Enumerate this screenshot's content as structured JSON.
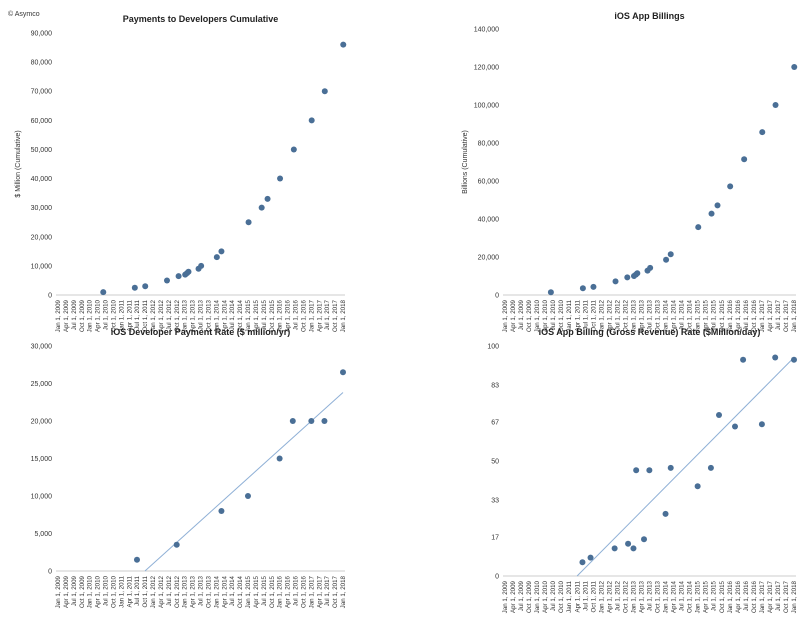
{
  "copyright": "© Asymco",
  "x_ticks": [
    "Jan 1, 2009",
    "Apr 1, 2009",
    "Jul 1, 2009",
    "Oct 1, 2009",
    "Jan 1, 2010",
    "Apr 1, 2010",
    "Jul 1, 2010",
    "Oct 1, 2010",
    "Jan 1, 2011",
    "Apr 1, 2011",
    "Jul 1, 2011",
    "Oct 1, 2011",
    "Jan 1, 2012",
    "Apr 1, 2012",
    "Jul 1, 2012",
    "Oct 1, 2012",
    "Jan 1, 2013",
    "Apr 1, 2013",
    "Jul 1, 2013",
    "Oct 1, 2013",
    "Jan 1, 2014",
    "Apr 1, 2014",
    "Jul 1, 2014",
    "Oct 1, 2014",
    "Jan 1, 2015",
    "Apr 1, 2015",
    "Jul 1, 2015",
    "Oct 1, 2015",
    "Jan 1, 2016",
    "Apr 1, 2016",
    "Jul 1, 2016",
    "Oct 1, 2016",
    "Jan 1, 2017",
    "Apr 1, 2017",
    "Jul 1, 2017",
    "Oct 1, 2017",
    "Jan 1, 2018"
  ],
  "point_color": "#4a6f96",
  "trend_color": "#8fb0d6",
  "chart_data": [
    {
      "type": "scatter",
      "title": "Payments to Developers Cumulative",
      "ylabel": "$ Million (Cumulative)",
      "ylim": [
        0,
        90000
      ],
      "yticks": [
        0,
        10000,
        20000,
        30000,
        40000,
        50000,
        60000,
        70000,
        80000,
        90000
      ],
      "ytick_labels": [
        "0",
        "10,000",
        "20,000",
        "30,000",
        "40,000",
        "50,000",
        "60,000",
        "70,000",
        "80,000",
        "90,000"
      ],
      "trendline": false,
      "points": [
        {
          "x": "2010-06-07",
          "y": 1000
        },
        {
          "x": "2011-06-06",
          "y": 2500
        },
        {
          "x": "2011-10-04",
          "y": 3000
        },
        {
          "x": "2012-06-11",
          "y": 5000
        },
        {
          "x": "2012-10-23",
          "y": 6500
        },
        {
          "x": "2013-01-07",
          "y": 7000
        },
        {
          "x": "2013-01-28",
          "y": 7500
        },
        {
          "x": "2013-02-14",
          "y": 8000
        },
        {
          "x": "2013-06-10",
          "y": 9000
        },
        {
          "x": "2013-07-10",
          "y": 10000
        },
        {
          "x": "2014-01-07",
          "y": 13000
        },
        {
          "x": "2014-03-01",
          "y": 15000
        },
        {
          "x": "2015-01-08",
          "y": 25000
        },
        {
          "x": "2015-06-08",
          "y": 30000
        },
        {
          "x": "2015-08-15",
          "y": 33000
        },
        {
          "x": "2016-01-06",
          "y": 40000
        },
        {
          "x": "2016-06-13",
          "y": 50000
        },
        {
          "x": "2017-01-05",
          "y": 60000
        },
        {
          "x": "2017-06-05",
          "y": 70000
        },
        {
          "x": "2018-01-04",
          "y": 86000
        }
      ]
    },
    {
      "type": "scatter",
      "title": "iOS App Billings",
      "ylabel": "Billions (Cumulative)",
      "ylim": [
        0,
        140000
      ],
      "yticks": [
        0,
        20000,
        40000,
        60000,
        80000,
        100000,
        120000,
        140000
      ],
      "ytick_labels": [
        "0",
        "20,000",
        "40,000",
        "60,000",
        "80,000",
        "100,000",
        "120,000",
        "140,000"
      ],
      "trendline": false,
      "points": [
        {
          "x": "2010-06-07",
          "y": 1429
        },
        {
          "x": "2011-06-06",
          "y": 3571
        },
        {
          "x": "2011-10-04",
          "y": 4286
        },
        {
          "x": "2012-06-11",
          "y": 7143
        },
        {
          "x": "2012-10-23",
          "y": 9286
        },
        {
          "x": "2013-01-07",
          "y": 10000
        },
        {
          "x": "2013-01-28",
          "y": 10714
        },
        {
          "x": "2013-02-14",
          "y": 11429
        },
        {
          "x": "2013-06-10",
          "y": 12857
        },
        {
          "x": "2013-07-10",
          "y": 14286
        },
        {
          "x": "2014-01-07",
          "y": 18571
        },
        {
          "x": "2014-03-01",
          "y": 21429
        },
        {
          "x": "2015-01-08",
          "y": 35714
        },
        {
          "x": "2015-06-08",
          "y": 42857
        },
        {
          "x": "2015-08-15",
          "y": 47143
        },
        {
          "x": "2016-01-06",
          "y": 57143
        },
        {
          "x": "2016-06-13",
          "y": 71429
        },
        {
          "x": "2017-01-05",
          "y": 85714
        },
        {
          "x": "2017-06-05",
          "y": 100000
        },
        {
          "x": "2018-01-04",
          "y": 120000
        }
      ]
    },
    {
      "type": "scatter",
      "title": "iOS Developer Payment Rate ($ million/yr)",
      "ylabel": "",
      "ylim": [
        0,
        30000
      ],
      "yticks": [
        0,
        5000,
        10000,
        15000,
        20000,
        25000,
        30000
      ],
      "ytick_labels": [
        "0",
        "5,000",
        "10,000",
        "15,000",
        "20,000",
        "25,000",
        "30,000"
      ],
      "trendline": true,
      "trend": [
        {
          "x": "2011-10-01",
          "y": 0
        },
        {
          "x": "2018-01-01",
          "y": 23800
        }
      ],
      "points": [
        {
          "x": "2011-07-01",
          "y": 1500
        },
        {
          "x": "2012-10-01",
          "y": 3500
        },
        {
          "x": "2014-03-01",
          "y": 8000
        },
        {
          "x": "2015-01-01",
          "y": 10000
        },
        {
          "x": "2016-01-01",
          "y": 15000
        },
        {
          "x": "2016-06-01",
          "y": 20000
        },
        {
          "x": "2017-01-01",
          "y": 20000
        },
        {
          "x": "2017-06-01",
          "y": 20000
        },
        {
          "x": "2018-01-01",
          "y": 26500
        }
      ]
    },
    {
      "type": "scatter",
      "title": "iOS App Billing (Gross Revenue) Rate ($Million/day)",
      "ylabel": "",
      "ylim": [
        0,
        100
      ],
      "yticks": [
        0,
        17,
        33,
        50,
        67,
        83,
        100
      ],
      "ytick_labels": [
        "0",
        "17",
        "33",
        "50",
        "67",
        "83",
        "100"
      ],
      "trendline": true,
      "trend": [
        {
          "x": "2011-04-01",
          "y": 0
        },
        {
          "x": "2018-01-01",
          "y": 95
        }
      ],
      "points": [
        {
          "x": "2011-06-01",
          "y": 6
        },
        {
          "x": "2011-09-01",
          "y": 8
        },
        {
          "x": "2012-06-01",
          "y": 12
        },
        {
          "x": "2012-11-01",
          "y": 14
        },
        {
          "x": "2013-01-01",
          "y": 12
        },
        {
          "x": "2013-02-01",
          "y": 46
        },
        {
          "x": "2013-05-01",
          "y": 16
        },
        {
          "x": "2013-07-01",
          "y": 46
        },
        {
          "x": "2014-01-01",
          "y": 27
        },
        {
          "x": "2014-03-01",
          "y": 47
        },
        {
          "x": "2015-01-01",
          "y": 39
        },
        {
          "x": "2015-06-01",
          "y": 47
        },
        {
          "x": "2015-09-01",
          "y": 70
        },
        {
          "x": "2016-03-01",
          "y": 65
        },
        {
          "x": "2016-06-01",
          "y": 94
        },
        {
          "x": "2017-01-01",
          "y": 66
        },
        {
          "x": "2017-06-01",
          "y": 95
        },
        {
          "x": "2018-01-01",
          "y": 94
        }
      ]
    }
  ]
}
